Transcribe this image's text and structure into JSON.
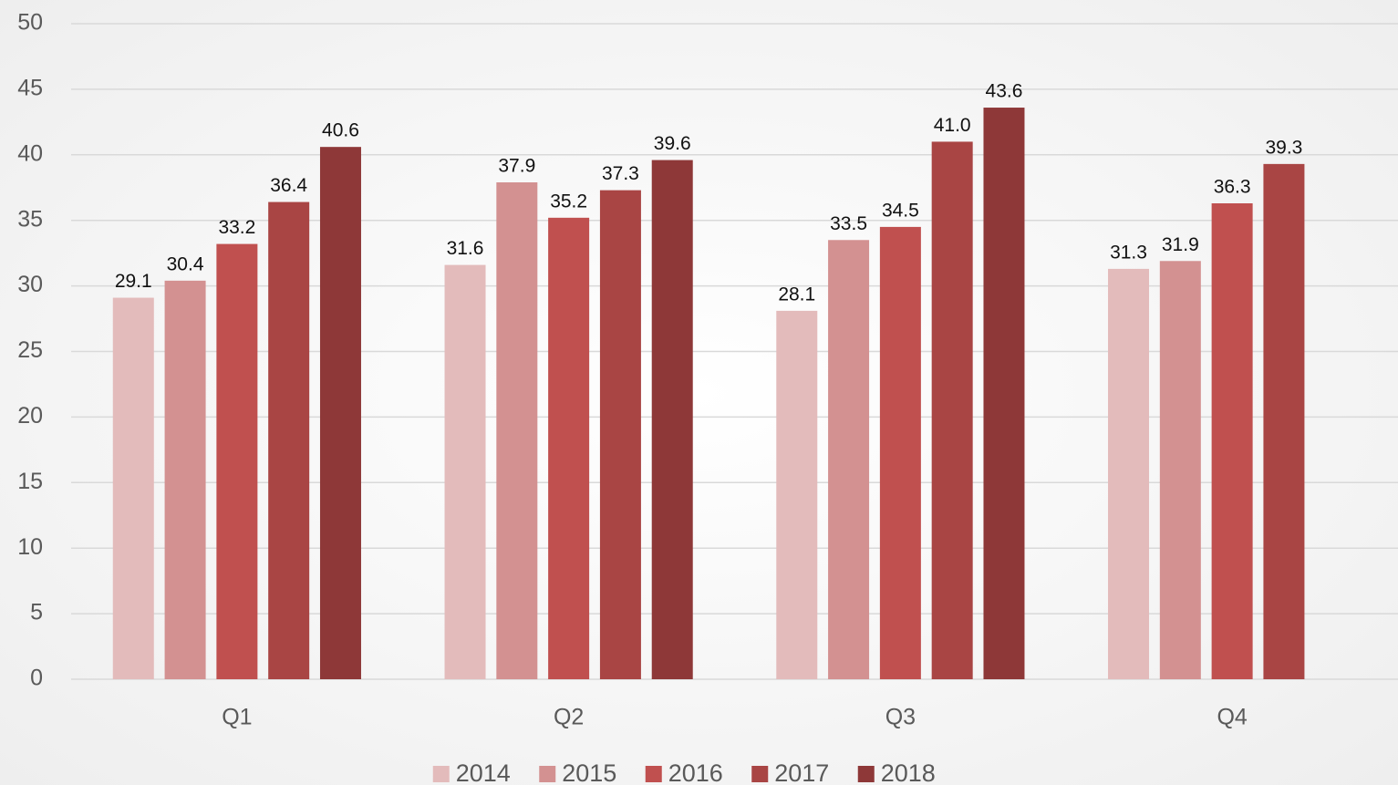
{
  "chart_data": {
    "type": "bar",
    "categories": [
      "Q1",
      "Q2",
      "Q3",
      "Q4"
    ],
    "series": [
      {
        "name": "2014",
        "color": "#e3bbbb",
        "values": [
          29.1,
          31.6,
          28.1,
          31.3
        ]
      },
      {
        "name": "2015",
        "color": "#d39191",
        "values": [
          30.4,
          37.9,
          33.5,
          31.9
        ]
      },
      {
        "name": "2016",
        "color": "#c0504f",
        "values": [
          33.2,
          35.2,
          34.5,
          36.3
        ]
      },
      {
        "name": "2017",
        "color": "#a94544",
        "values": [
          36.4,
          37.3,
          41,
          39.3
        ],
        "value_labels": [
          "36.4",
          "37.3",
          "41.0",
          "39.3"
        ]
      },
      {
        "name": "2018",
        "color": "#8e3838",
        "values": [
          40.6,
          39.6,
          43.6,
          null
        ]
      }
    ],
    "ylim": [
      0,
      50
    ],
    "yticks": [
      0,
      5,
      10,
      15,
      20,
      25,
      30,
      35,
      40,
      45,
      50
    ],
    "grid": true,
    "legend": "bottom"
  }
}
